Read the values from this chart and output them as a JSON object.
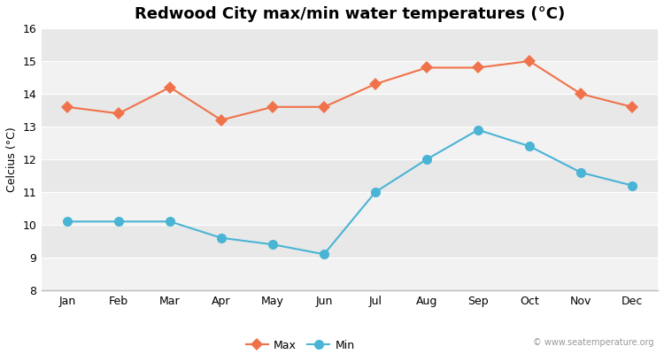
{
  "months": [
    "Jan",
    "Feb",
    "Mar",
    "Apr",
    "May",
    "Jun",
    "Jul",
    "Aug",
    "Sep",
    "Oct",
    "Nov",
    "Dec"
  ],
  "max_temps": [
    13.6,
    13.4,
    14.2,
    13.2,
    13.6,
    13.6,
    14.3,
    14.8,
    14.8,
    15.0,
    14.0,
    13.6
  ],
  "min_temps": [
    10.1,
    10.1,
    10.1,
    9.6,
    9.4,
    9.1,
    11.0,
    12.0,
    12.9,
    12.4,
    11.6,
    11.2
  ],
  "max_color": "#f0724a",
  "min_color": "#4ab4d4",
  "title": "Redwood City max/min water temperatures (°C)",
  "ylabel": "Celcius (°C)",
  "ylim": [
    8,
    16
  ],
  "yticks": [
    8,
    9,
    10,
    11,
    12,
    13,
    14,
    15,
    16
  ],
  "bg_color": "#ffffff",
  "plot_bg_color": "#f2f2f2",
  "band_light": "#f2f2f2",
  "band_dark": "#e8e8e8",
  "watermark": "© www.seatemperature.org",
  "legend_labels": [
    "Max",
    "Min"
  ],
  "title_fontsize": 13,
  "label_fontsize": 9,
  "tick_fontsize": 9,
  "marker_size_max": 7,
  "marker_size_min": 8,
  "line_width": 1.5
}
